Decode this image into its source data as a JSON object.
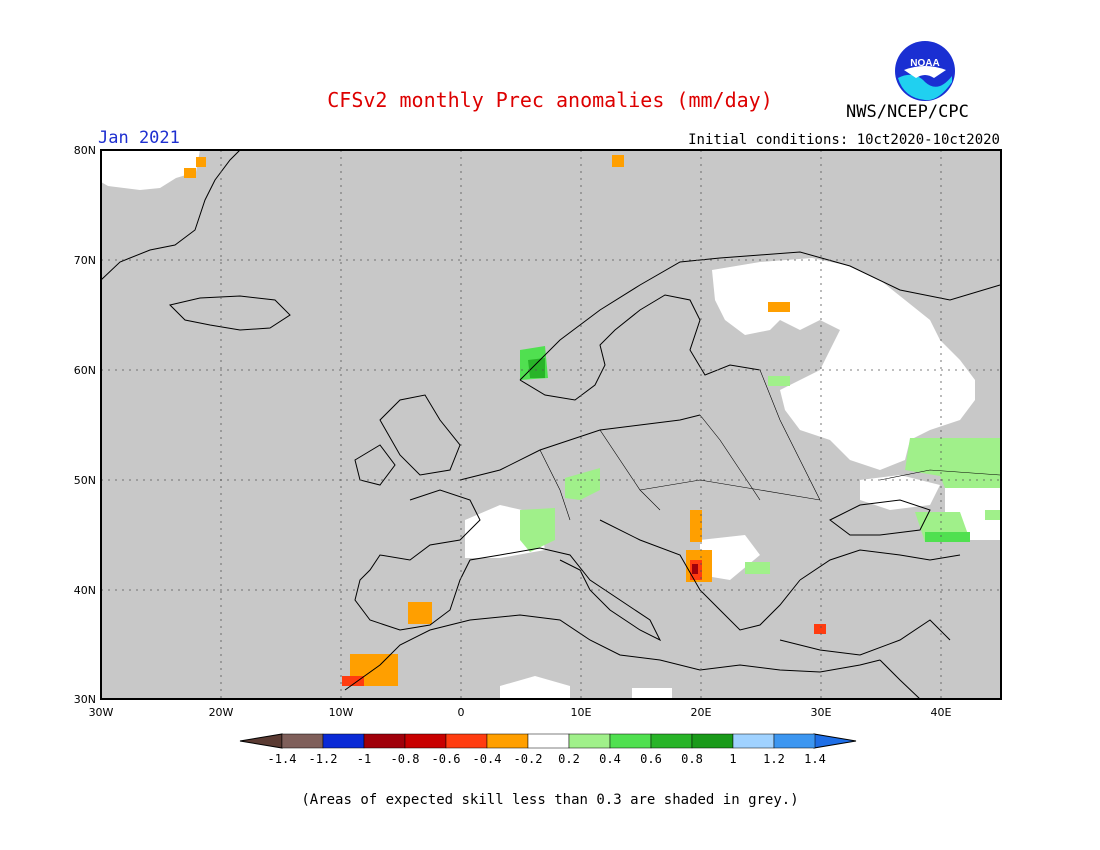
{
  "header": {
    "title": "CFSv2 monthly Prec anomalies (mm/day)",
    "title_color": "#dd0000",
    "month": "Jan 2021",
    "month_color": "#1e2fd0",
    "init": "Initial conditions: 10ct2020-10ct2020",
    "agency": "NWS/NCEP/CPC",
    "logo_text": "NOAA"
  },
  "map": {
    "lat_labels": [
      "80N",
      "70N",
      "60N",
      "50N",
      "40N",
      "30N"
    ],
    "lon_labels": [
      "30W",
      "20W",
      "10W",
      "0",
      "10E",
      "20E",
      "30E",
      "40E"
    ],
    "background": "#c8c8c8"
  },
  "legend": {
    "labels": [
      "-1.4",
      "-1.2",
      "-1",
      "-0.8",
      "-0.6",
      "-0.4",
      "-0.2",
      "0.2",
      "0.4",
      "0.6",
      "0.8",
      "1",
      "1.2",
      "1.4"
    ],
    "colors": [
      "#7f5f5a",
      "#0a2ad6",
      "#a0000a",
      "#c80000",
      "#ff3c10",
      "#ff9f00",
      "#ffffff",
      "#a0f08a",
      "#50e050",
      "#28b428",
      "#1a9a1a",
      "#a0d2ff",
      "#3c96f0"
    ],
    "low_end_color": "#5a3a32",
    "high_end_color": "#1e6ee6"
  },
  "footnote": "(Areas of expected skill less than 0.3 are shaded in grey.)"
}
